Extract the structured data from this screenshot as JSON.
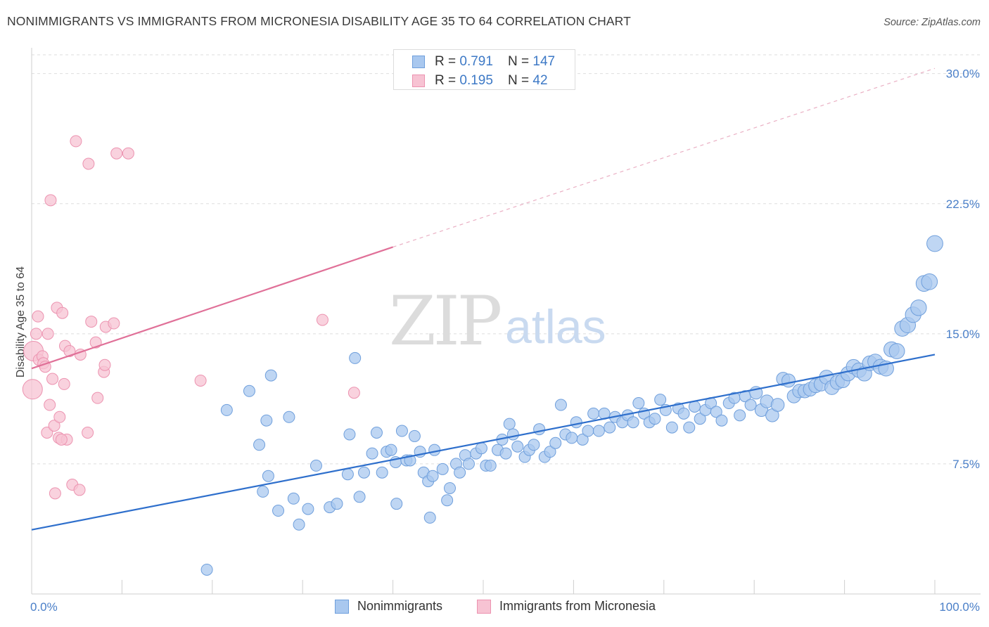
{
  "title": "NONIMMIGRANTS VS IMMIGRANTS FROM MICRONESIA DISABILITY AGE 35 TO 64 CORRELATION CHART",
  "source": "Source: ZipAtlas.com",
  "watermark": {
    "zip": "ZIP",
    "atlas": "atlas"
  },
  "legend": {
    "rows": [
      {
        "r_label": "R = ",
        "r_value": "0.791",
        "n_label": "N = ",
        "n_value": "147"
      },
      {
        "r_label": "R = ",
        "r_value": "0.195",
        "n_label": "N = ",
        "n_value": "42"
      }
    ]
  },
  "bottom_legend": {
    "series1": "Nonimmigrants",
    "series2": "Immigrants from Micronesia"
  },
  "colors": {
    "blue_fill": "#a9c8ef",
    "blue_stroke": "#6f9fdc",
    "blue_line": "#2e6fcc",
    "pink_fill": "#f7c3d3",
    "pink_stroke": "#ec93b0",
    "pink_line": "#e07098",
    "grid": "#dedede",
    "tick_label": "#4a7fc8"
  },
  "chart_data": {
    "type": "scatter",
    "title": "NONIMMIGRANTS VS IMMIGRANTS FROM MICRONESIA DISABILITY AGE 35 TO 64 CORRELATION CHART",
    "xlabel": "",
    "ylabel": "Disability Age 35 to 64",
    "xlim": [
      0,
      100
    ],
    "ylim": [
      0,
      31
    ],
    "x_tick_labels": [
      "0.0%",
      "100.0%"
    ],
    "y_ticks": [
      7.5,
      15.0,
      22.5,
      30.0
    ],
    "y_tick_labels": [
      "7.5%",
      "15.0%",
      "22.5%",
      "30.0%"
    ],
    "grid": true,
    "legend_position": "top-center",
    "series": [
      {
        "name": "Nonimmigrants",
        "color": "#a9c8ef",
        "trend": {
          "x0": 0,
          "y0": 3.7,
          "x1": 100,
          "y1": 13.8
        },
        "points": [
          [
            19.4,
            1.4
          ],
          [
            21.6,
            10.6
          ],
          [
            24.1,
            11.7
          ],
          [
            25.2,
            8.6
          ],
          [
            25.6,
            5.9
          ],
          [
            26.0,
            10.0
          ],
          [
            26.2,
            6.8
          ],
          [
            26.5,
            12.6
          ],
          [
            27.3,
            4.8
          ],
          [
            28.5,
            10.2
          ],
          [
            29.0,
            5.5
          ],
          [
            29.6,
            4.0
          ],
          [
            30.6,
            4.9
          ],
          [
            31.5,
            7.4
          ],
          [
            33.0,
            5.0
          ],
          [
            33.8,
            5.2
          ],
          [
            35.0,
            6.9
          ],
          [
            35.2,
            9.2
          ],
          [
            35.8,
            13.6
          ],
          [
            36.3,
            5.6
          ],
          [
            36.8,
            7.0
          ],
          [
            37.7,
            8.1
          ],
          [
            38.2,
            9.3
          ],
          [
            38.8,
            7.0
          ],
          [
            39.3,
            8.2
          ],
          [
            39.8,
            8.3
          ],
          [
            40.3,
            7.6
          ],
          [
            40.4,
            5.2
          ],
          [
            41.0,
            9.4
          ],
          [
            41.5,
            7.7
          ],
          [
            41.9,
            7.7
          ],
          [
            42.4,
            9.1
          ],
          [
            43.0,
            8.2
          ],
          [
            43.4,
            7.0
          ],
          [
            43.9,
            6.5
          ],
          [
            44.1,
            4.4
          ],
          [
            44.4,
            6.8
          ],
          [
            44.6,
            8.3
          ],
          [
            45.5,
            7.2
          ],
          [
            46.0,
            5.4
          ],
          [
            46.3,
            6.1
          ],
          [
            47.0,
            7.5
          ],
          [
            47.4,
            7.0
          ],
          [
            48.0,
            8.0
          ],
          [
            48.4,
            7.5
          ],
          [
            49.2,
            8.1
          ],
          [
            49.8,
            8.4
          ],
          [
            50.3,
            7.4
          ],
          [
            50.8,
            7.4
          ],
          [
            51.6,
            8.3
          ],
          [
            52.1,
            8.9
          ],
          [
            52.5,
            8.1
          ],
          [
            52.9,
            9.8
          ],
          [
            53.3,
            9.2
          ],
          [
            53.8,
            8.5
          ],
          [
            54.6,
            7.9
          ],
          [
            55.1,
            8.3
          ],
          [
            55.6,
            8.6
          ],
          [
            56.2,
            9.5
          ],
          [
            56.8,
            7.9
          ],
          [
            57.4,
            8.2
          ],
          [
            58.0,
            8.7
          ],
          [
            58.6,
            10.9
          ],
          [
            59.1,
            9.2
          ],
          [
            59.8,
            9.0
          ],
          [
            60.3,
            9.9
          ],
          [
            61.0,
            8.9
          ],
          [
            61.6,
            9.4
          ],
          [
            62.2,
            10.4
          ],
          [
            62.8,
            9.4
          ],
          [
            63.4,
            10.4
          ],
          [
            64.0,
            9.6
          ],
          [
            64.6,
            10.2
          ],
          [
            65.4,
            9.9
          ],
          [
            66.0,
            10.3
          ],
          [
            66.6,
            9.9
          ],
          [
            67.2,
            11.0
          ],
          [
            67.8,
            10.4
          ],
          [
            68.4,
            9.9
          ],
          [
            69.0,
            10.1
          ],
          [
            69.6,
            11.2
          ],
          [
            70.2,
            10.6
          ],
          [
            70.9,
            9.6
          ],
          [
            71.6,
            10.7
          ],
          [
            72.2,
            10.4
          ],
          [
            72.8,
            9.6
          ],
          [
            73.4,
            10.8
          ],
          [
            74.0,
            10.1
          ],
          [
            74.6,
            10.6
          ],
          [
            75.2,
            11.0
          ],
          [
            75.8,
            10.5
          ],
          [
            76.4,
            10.0
          ],
          [
            77.2,
            11.0
          ],
          [
            77.8,
            11.3
          ],
          [
            78.4,
            10.3
          ],
          [
            79.0,
            11.4
          ],
          [
            79.6,
            10.9
          ],
          [
            80.2,
            11.6
          ],
          [
            80.8,
            10.6
          ],
          [
            81.4,
            11.1
          ],
          [
            82.0,
            10.3
          ],
          [
            82.6,
            10.9
          ],
          [
            83.2,
            12.4
          ],
          [
            83.8,
            12.3
          ],
          [
            84.4,
            11.4
          ],
          [
            85.0,
            11.7
          ],
          [
            85.6,
            11.7
          ],
          [
            86.2,
            11.8
          ],
          [
            86.8,
            12.0
          ],
          [
            87.4,
            12.1
          ],
          [
            88.0,
            12.5
          ],
          [
            88.6,
            11.9
          ],
          [
            89.2,
            12.2
          ],
          [
            89.8,
            12.3
          ],
          [
            90.4,
            12.7
          ],
          [
            91.0,
            13.1
          ],
          [
            91.6,
            12.9
          ],
          [
            92.2,
            12.7
          ],
          [
            92.8,
            13.3
          ],
          [
            93.4,
            13.4
          ],
          [
            94.0,
            13.1
          ],
          [
            94.6,
            13.0
          ],
          [
            95.2,
            14.1
          ],
          [
            95.8,
            14.0
          ],
          [
            96.4,
            15.3
          ],
          [
            97.0,
            15.5
          ],
          [
            97.6,
            16.1
          ],
          [
            98.2,
            16.5
          ],
          [
            98.8,
            17.9
          ],
          [
            99.4,
            18.0
          ],
          [
            100.0,
            20.2
          ]
        ]
      },
      {
        "name": "Immigrants from Micronesia",
        "color": "#f7c3d3",
        "trend": {
          "x0": 0,
          "y0": 13.0,
          "x1": 40,
          "y1": 20.0,
          "dashed_to": {
            "x": 100,
            "y": 30.3
          }
        },
        "points": [
          [
            0.1,
            11.8
          ],
          [
            0.2,
            14.0
          ],
          [
            0.5,
            15.0
          ],
          [
            0.7,
            16.0
          ],
          [
            0.8,
            13.5
          ],
          [
            1.2,
            13.7
          ],
          [
            1.3,
            13.3
          ],
          [
            1.5,
            13.1
          ],
          [
            1.7,
            9.3
          ],
          [
            1.8,
            15.0
          ],
          [
            2.0,
            10.9
          ],
          [
            2.1,
            22.7
          ],
          [
            2.3,
            12.4
          ],
          [
            2.5,
            9.7
          ],
          [
            2.6,
            5.8
          ],
          [
            2.8,
            16.5
          ],
          [
            3.0,
            9.0
          ],
          [
            3.1,
            10.2
          ],
          [
            3.4,
            16.2
          ],
          [
            3.6,
            12.1
          ],
          [
            3.7,
            14.3
          ],
          [
            3.9,
            8.9
          ],
          [
            4.2,
            14.0
          ],
          [
            4.5,
            6.3
          ],
          [
            4.9,
            26.1
          ],
          [
            5.3,
            6.0
          ],
          [
            5.4,
            13.8
          ],
          [
            6.2,
            9.3
          ],
          [
            6.3,
            24.8
          ],
          [
            6.6,
            15.7
          ],
          [
            7.1,
            14.5
          ],
          [
            7.3,
            11.3
          ],
          [
            8.0,
            12.8
          ],
          [
            8.1,
            13.2
          ],
          [
            8.2,
            15.4
          ],
          [
            9.1,
            15.6
          ],
          [
            9.4,
            25.4
          ],
          [
            10.7,
            25.4
          ],
          [
            18.7,
            12.3
          ],
          [
            32.2,
            15.8
          ],
          [
            35.7,
            11.6
          ],
          [
            3.3,
            8.9
          ]
        ]
      }
    ]
  }
}
